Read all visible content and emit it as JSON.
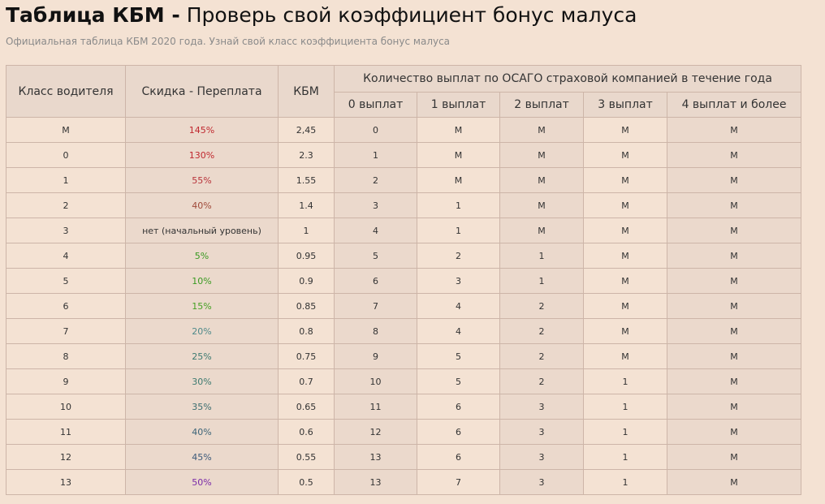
{
  "header": {
    "title_bold": "Таблица КБМ -",
    "title_rest": " Проверь свой коэффициент бонус малуса",
    "subtitle": "Официальная таблица КБМ 2020 года. Узнай свой класс коэффициента бонус малуса"
  },
  "table": {
    "headers": {
      "driver_class": "Класс водителя",
      "discount": "Скидка - Переплата",
      "kbm": "КБМ",
      "payouts_group": "Количество выплат по ОСАГО страховой компанией в течение года",
      "payouts": [
        "0 выплат",
        "1 выплат",
        "2 выплат",
        "3 выплат",
        "4 выплат и более"
      ]
    },
    "rows": [
      {
        "cls": "М",
        "discount": "145%",
        "discount_color": "#c0282f",
        "kbm": "2,45",
        "p": [
          "0",
          "М",
          "М",
          "М",
          "М"
        ]
      },
      {
        "cls": "0",
        "discount": "130%",
        "discount_color": "#c0282f",
        "kbm": "2.3",
        "p": [
          "1",
          "М",
          "М",
          "М",
          "М"
        ]
      },
      {
        "cls": "1",
        "discount": "55%",
        "discount_color": "#b8333a",
        "kbm": "1.55",
        "p": [
          "2",
          "М",
          "М",
          "М",
          "М"
        ]
      },
      {
        "cls": "2",
        "discount": "40%",
        "discount_color": "#a04a3a",
        "kbm": "1.4",
        "p": [
          "3",
          "1",
          "М",
          "М",
          "М"
        ]
      },
      {
        "cls": "3",
        "discount": "нет (начальный уровень)",
        "discount_color": "#333333",
        "kbm": "1",
        "p": [
          "4",
          "1",
          "М",
          "М",
          "М"
        ]
      },
      {
        "cls": "4",
        "discount": "5%",
        "discount_color": "#3a9a22",
        "kbm": "0.95",
        "p": [
          "5",
          "2",
          "1",
          "М",
          "М"
        ]
      },
      {
        "cls": "5",
        "discount": "10%",
        "discount_color": "#3a9a22",
        "kbm": "0.9",
        "p": [
          "6",
          "3",
          "1",
          "М",
          "М"
        ]
      },
      {
        "cls": "6",
        "discount": "15%",
        "discount_color": "#44a022",
        "kbm": "0.85",
        "p": [
          "7",
          "4",
          "2",
          "М",
          "М"
        ]
      },
      {
        "cls": "7",
        "discount": "20%",
        "discount_color": "#4e8a8a",
        "kbm": "0.8",
        "p": [
          "8",
          "4",
          "2",
          "М",
          "М"
        ]
      },
      {
        "cls": "8",
        "discount": "25%",
        "discount_color": "#3c7a70",
        "kbm": "0.75",
        "p": [
          "9",
          "5",
          "2",
          "М",
          "М"
        ]
      },
      {
        "cls": "9",
        "discount": "30%",
        "discount_color": "#3c7a70",
        "kbm": "0.7",
        "p": [
          "10",
          "5",
          "2",
          "1",
          "М"
        ]
      },
      {
        "cls": "10",
        "discount": "35%",
        "discount_color": "#3c6e70",
        "kbm": "0.65",
        "p": [
          "11",
          "6",
          "3",
          "1",
          "М"
        ]
      },
      {
        "cls": "11",
        "discount": "40%",
        "discount_color": "#3c6478",
        "kbm": "0.6",
        "p": [
          "12",
          "6",
          "3",
          "1",
          "М"
        ]
      },
      {
        "cls": "12",
        "discount": "45%",
        "discount_color": "#3c5a7a",
        "kbm": "0.55",
        "p": [
          "13",
          "6",
          "3",
          "1",
          "М"
        ]
      },
      {
        "cls": "13",
        "discount": "50%",
        "discount_color": "#7a2aa8",
        "kbm": "0.5",
        "p": [
          "13",
          "7",
          "3",
          "1",
          "М"
        ]
      }
    ]
  }
}
